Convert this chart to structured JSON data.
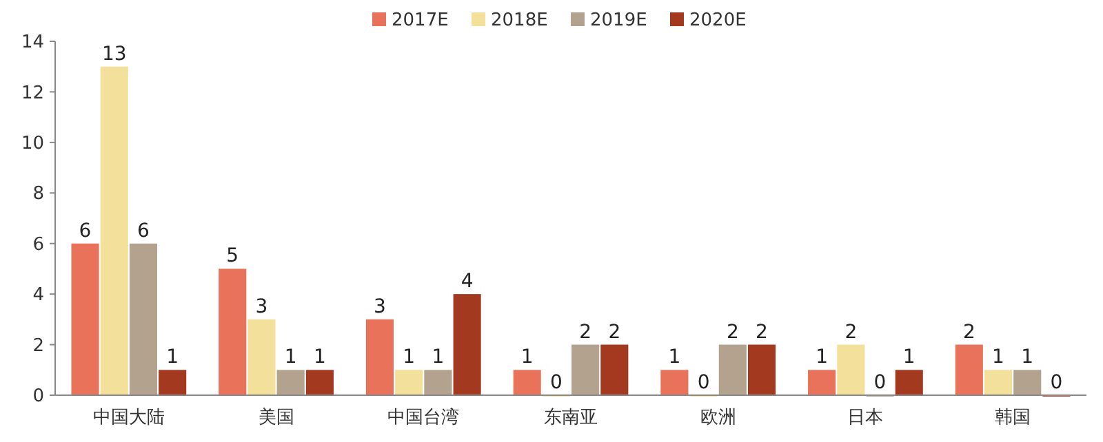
{
  "chart_data": {
    "type": "bar",
    "categories": [
      "中国大陆",
      "美国",
      "中国台湾",
      "东南亚",
      "欧洲",
      "日本",
      "韩国"
    ],
    "series": [
      {
        "name": "2017E",
        "color": "#e8735a",
        "values": [
          6,
          5,
          3,
          1,
          1,
          1,
          2
        ]
      },
      {
        "name": "2018E",
        "color": "#f3e09a",
        "values": [
          13,
          3,
          1,
          0,
          0,
          2,
          1
        ]
      },
      {
        "name": "2019E",
        "color": "#b3a38e",
        "values": [
          6,
          1,
          1,
          2,
          2,
          0,
          1
        ]
      },
      {
        "name": "2020E",
        "color": "#a3391f",
        "values": [
          1,
          1,
          4,
          2,
          2,
          1,
          0
        ]
      }
    ],
    "ylim": [
      0,
      14
    ],
    "yticks": [
      0,
      2,
      4,
      6,
      8,
      10,
      12,
      14
    ],
    "data_labels": true,
    "grid": false,
    "legend": "top"
  }
}
